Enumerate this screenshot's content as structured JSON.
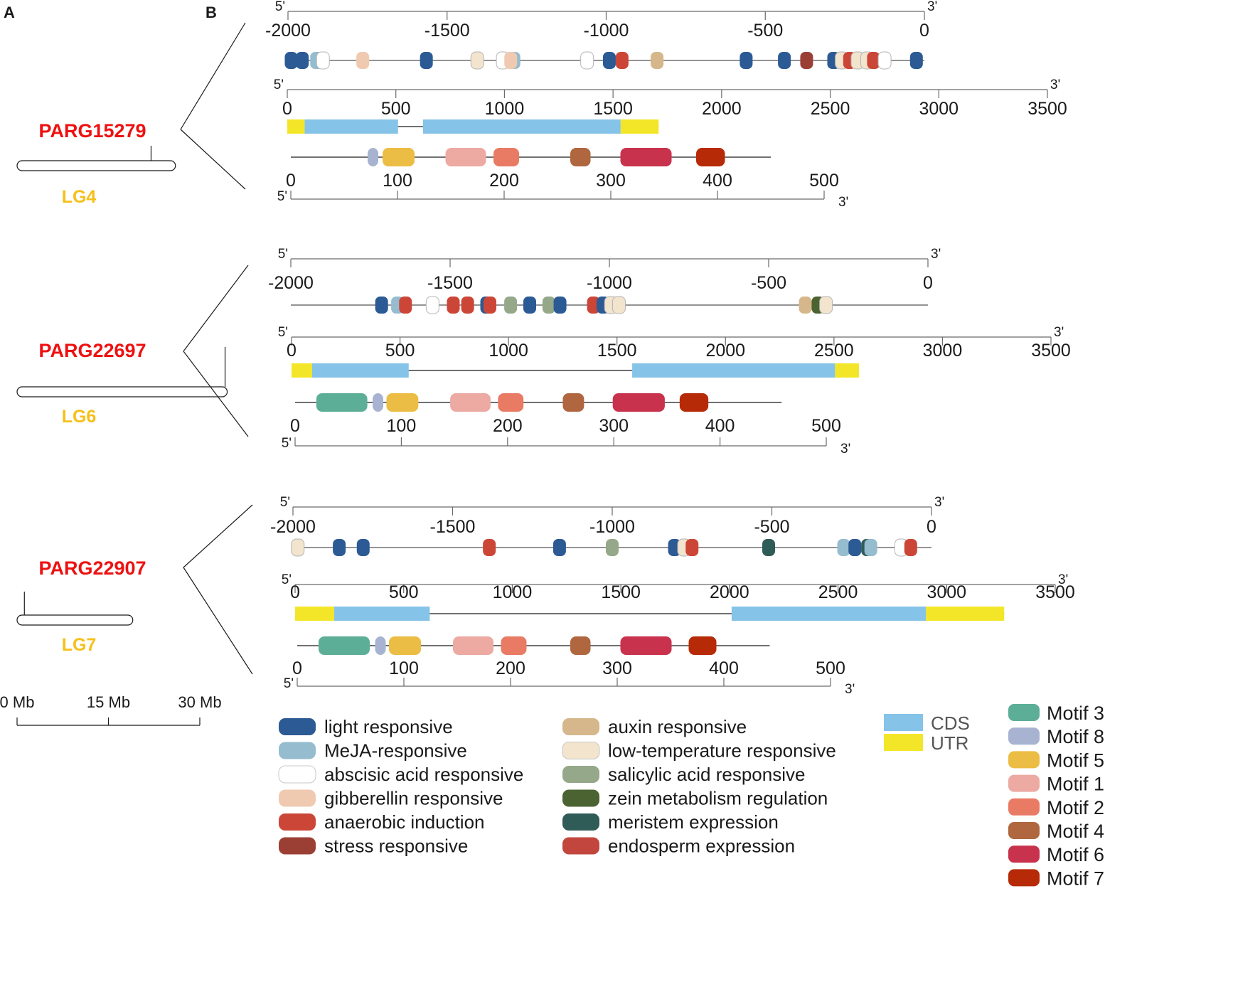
{
  "panels": {
    "a": "A",
    "b": "B"
  },
  "prime": {
    "five": "5'",
    "three": "3'"
  },
  "promoter_ticks": [
    "-2000",
    "-1500",
    "-1000",
    "-500",
    "0"
  ],
  "gene_ticks": [
    "0",
    "500",
    "1000",
    "1500",
    "2000",
    "2500",
    "3000",
    "3500"
  ],
  "protein_ticks": [
    "0",
    "100",
    "200",
    "300",
    "400",
    "500"
  ],
  "colors": {
    "elements": {
      "light": "#2c5a94",
      "meja": "#95bccf",
      "aba": "#ffffff",
      "ga": "#efcab0",
      "anaerobic": "#cc4637",
      "stress": "#9b3f35",
      "auxin": "#d6b78b",
      "lowtemp": "#f2e4cd",
      "sa": "#95a88a",
      "zein": "#4b6331",
      "meristem": "#305c57",
      "endosperm": "#c2463d"
    },
    "cds": "#86c3e8",
    "utr": "#f3e629",
    "motifs": {
      "m3": "#5dae97",
      "m8": "#a8b3d2",
      "m5": "#ecbd44",
      "m1": "#ecaaa2",
      "m2": "#e97b64",
      "m4": "#b0673f",
      "m6": "#c9324d",
      "m7": "#b72a08"
    },
    "gene_name": "#ee1111",
    "lg": "#f5c01a"
  },
  "genes": [
    {
      "name": "PARG15279",
      "lg": "LG4",
      "chrom_mb": 22,
      "chrom_len_mb": 26,
      "promoter_elements": [
        {
          "pos": -1990,
          "type": "light"
        },
        {
          "pos": -1955,
          "type": "light"
        },
        {
          "pos": -1910,
          "type": "meja"
        },
        {
          "pos": -1890,
          "type": "aba"
        },
        {
          "pos": -1765,
          "type": "ga"
        },
        {
          "pos": -1565,
          "type": "light"
        },
        {
          "pos": -1405,
          "type": "lowtemp"
        },
        {
          "pos": -1325,
          "type": "aba"
        },
        {
          "pos": -1290,
          "type": "meja"
        },
        {
          "pos": -1300,
          "type": "ga"
        },
        {
          "pos": -1060,
          "type": "aba"
        },
        {
          "pos": -990,
          "type": "light"
        },
        {
          "pos": -950,
          "type": "anaerobic"
        },
        {
          "pos": -840,
          "type": "auxin"
        },
        {
          "pos": -560,
          "type": "light"
        },
        {
          "pos": -440,
          "type": "light"
        },
        {
          "pos": -370,
          "type": "stress"
        },
        {
          "pos": -285,
          "type": "light"
        },
        {
          "pos": -260,
          "type": "lowtemp"
        },
        {
          "pos": -235,
          "type": "anaerobic"
        },
        {
          "pos": -210,
          "type": "lowtemp"
        },
        {
          "pos": -180,
          "type": "lowtemp"
        },
        {
          "pos": -160,
          "type": "anaerobic"
        },
        {
          "pos": -125,
          "type": "aba"
        },
        {
          "pos": -25,
          "type": "light"
        }
      ],
      "gene_segments": [
        {
          "start": 0,
          "end": 80,
          "type": "utr"
        },
        {
          "start": 80,
          "end": 510,
          "type": "cds"
        },
        {
          "start": 625,
          "end": 1535,
          "type": "cds"
        },
        {
          "start": 1535,
          "end": 1710,
          "type": "utr"
        }
      ],
      "gene_line": [
        0,
        1710
      ],
      "protein_length": 450,
      "motifs": [
        {
          "start": 72,
          "end": 82,
          "motif": "m8"
        },
        {
          "start": 86,
          "end": 116,
          "motif": "m5"
        },
        {
          "start": 145,
          "end": 183,
          "motif": "m1"
        },
        {
          "start": 190,
          "end": 214,
          "motif": "m2"
        },
        {
          "start": 262,
          "end": 281,
          "motif": "m4"
        },
        {
          "start": 309,
          "end": 357,
          "motif": "m6"
        },
        {
          "start": 380,
          "end": 407,
          "motif": "m7"
        }
      ]
    },
    {
      "name": "PARG22697",
      "lg": "LG6",
      "chrom_mb": 34.5,
      "chrom_len_mb": 34.5,
      "promoter_elements": [
        {
          "pos": -1715,
          "type": "light"
        },
        {
          "pos": -1665,
          "type": "meja"
        },
        {
          "pos": -1640,
          "type": "anaerobic"
        },
        {
          "pos": -1555,
          "type": "aba"
        },
        {
          "pos": -1490,
          "type": "anaerobic"
        },
        {
          "pos": -1445,
          "type": "anaerobic"
        },
        {
          "pos": -1385,
          "type": "light"
        },
        {
          "pos": -1375,
          "type": "anaerobic"
        },
        {
          "pos": -1310,
          "type": "sa"
        },
        {
          "pos": -1250,
          "type": "light"
        },
        {
          "pos": -1190,
          "type": "sa"
        },
        {
          "pos": -1155,
          "type": "light"
        },
        {
          "pos": -1050,
          "type": "anaerobic"
        },
        {
          "pos": -1020,
          "type": "light"
        },
        {
          "pos": -995,
          "type": "lowtemp"
        },
        {
          "pos": -970,
          "type": "lowtemp"
        },
        {
          "pos": -385,
          "type": "auxin"
        },
        {
          "pos": -345,
          "type": "zein"
        },
        {
          "pos": -320,
          "type": "lowtemp"
        }
      ],
      "gene_segments": [
        {
          "start": 0,
          "end": 95,
          "type": "utr"
        },
        {
          "start": 95,
          "end": 540,
          "type": "cds"
        },
        {
          "start": 1570,
          "end": 2505,
          "type": "cds"
        },
        {
          "start": 2505,
          "end": 2615,
          "type": "utr"
        }
      ],
      "gene_line": [
        0,
        2615
      ],
      "protein_length": 458,
      "motifs": [
        {
          "start": 20,
          "end": 68,
          "motif": "m3"
        },
        {
          "start": 73,
          "end": 83,
          "motif": "m8"
        },
        {
          "start": 86,
          "end": 116,
          "motif": "m5"
        },
        {
          "start": 146,
          "end": 184,
          "motif": "m1"
        },
        {
          "start": 191,
          "end": 215,
          "motif": "m2"
        },
        {
          "start": 252,
          "end": 272,
          "motif": "m4"
        },
        {
          "start": 299,
          "end": 348,
          "motif": "m6"
        },
        {
          "start": 362,
          "end": 389,
          "motif": "m7"
        }
      ]
    },
    {
      "name": "PARG22907",
      "lg": "LG7",
      "chrom_mb": 1.2,
      "chrom_len_mb": 19,
      "promoter_elements": [
        {
          "pos": -1985,
          "type": "lowtemp"
        },
        {
          "pos": -1855,
          "type": "light"
        },
        {
          "pos": -1780,
          "type": "light"
        },
        {
          "pos": -1385,
          "type": "anaerobic"
        },
        {
          "pos": -1165,
          "type": "light"
        },
        {
          "pos": -1000,
          "type": "sa"
        },
        {
          "pos": -805,
          "type": "light"
        },
        {
          "pos": -775,
          "type": "lowtemp"
        },
        {
          "pos": -750,
          "type": "anaerobic"
        },
        {
          "pos": -510,
          "type": "meristem"
        },
        {
          "pos": -275,
          "type": "meja"
        },
        {
          "pos": -240,
          "type": "light"
        },
        {
          "pos": -200,
          "type": "meristem"
        },
        {
          "pos": -190,
          "type": "meja"
        },
        {
          "pos": -95,
          "type": "aba"
        },
        {
          "pos": -65,
          "type": "anaerobic"
        }
      ],
      "gene_segments": [
        {
          "start": 0,
          "end": 180,
          "type": "utr"
        },
        {
          "start": 180,
          "end": 620,
          "type": "cds"
        },
        {
          "start": 2010,
          "end": 2905,
          "type": "cds"
        },
        {
          "start": 2905,
          "end": 3265,
          "type": "utr"
        }
      ],
      "gene_line": [
        0,
        3265
      ],
      "protein_length": 443,
      "motifs": [
        {
          "start": 20,
          "end": 68,
          "motif": "m3"
        },
        {
          "start": 73,
          "end": 83,
          "motif": "m8"
        },
        {
          "start": 86,
          "end": 116,
          "motif": "m5"
        },
        {
          "start": 146,
          "end": 184,
          "motif": "m1"
        },
        {
          "start": 191,
          "end": 215,
          "motif": "m2"
        },
        {
          "start": 256,
          "end": 275,
          "motif": "m4"
        },
        {
          "start": 303,
          "end": 351,
          "motif": "m6"
        },
        {
          "start": 367,
          "end": 393,
          "motif": "m7"
        }
      ]
    }
  ],
  "scale": {
    "ticks": [
      "0 Mb",
      "15 Mb",
      "30 Mb"
    ],
    "max_mb": 30
  },
  "legend": {
    "elements": [
      {
        "key": "light",
        "label": "light responsive"
      },
      {
        "key": "meja",
        "label": "MeJA-responsive"
      },
      {
        "key": "aba",
        "label": "abscisic acid responsive"
      },
      {
        "key": "ga",
        "label": "gibberellin responsive"
      },
      {
        "key": "anaerobic",
        "label": "anaerobic induction"
      },
      {
        "key": "stress",
        "label": "stress responsive"
      },
      {
        "key": "auxin",
        "label": "auxin responsive"
      },
      {
        "key": "lowtemp",
        "label": "low-temperature responsive"
      },
      {
        "key": "sa",
        "label": "salicylic acid responsive"
      },
      {
        "key": "zein",
        "label": "zein metabolism regulation"
      },
      {
        "key": "meristem",
        "label": "meristem expression"
      },
      {
        "key": "endosperm",
        "label": "endosperm expression"
      }
    ],
    "structure": [
      {
        "key": "cds",
        "label": "CDS"
      },
      {
        "key": "utr",
        "label": "UTR"
      }
    ],
    "motifs": [
      {
        "key": "m3",
        "label": "Motif 3"
      },
      {
        "key": "m8",
        "label": "Motif 8"
      },
      {
        "key": "m5",
        "label": "Motif 5"
      },
      {
        "key": "m1",
        "label": "Motif 1"
      },
      {
        "key": "m2",
        "label": "Motif 2"
      },
      {
        "key": "m4",
        "label": "Motif 4"
      },
      {
        "key": "m6",
        "label": "Motif 6"
      },
      {
        "key": "m7",
        "label": "Motif 7"
      }
    ]
  }
}
